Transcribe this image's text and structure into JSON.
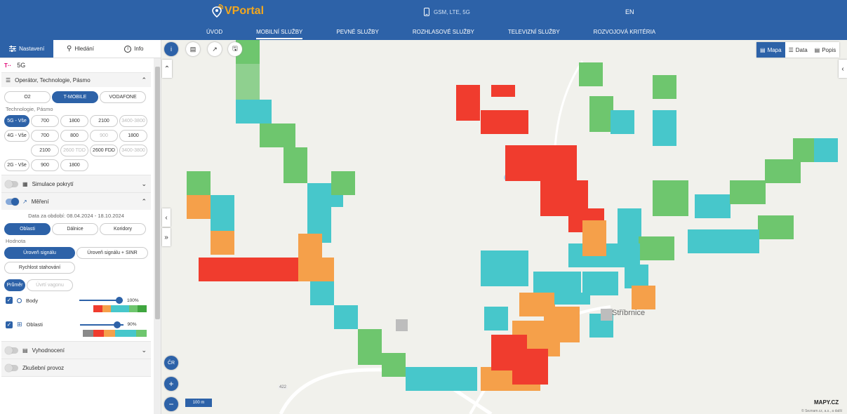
{
  "header": {
    "brand": "Portal",
    "brand_prefix": "V",
    "network": "GSM, LTE, 5G",
    "language": "EN",
    "nav": [
      "ÚVOD",
      "MOBILNÍ SLUŽBY",
      "PEVNÉ SLUŽBY",
      "ROZHLASOVÉ SLUŽBY",
      "TELEVIZNÍ SLUŽBY",
      "ROZVOJOVÁ KRITÉRIA"
    ],
    "nav_active": "MOBILNÍ SLUŽBY"
  },
  "sidebar": {
    "tabs": {
      "settings": "Nastavení",
      "search": "Hledání",
      "info": "Info"
    },
    "selection": "5G",
    "operator_section": "Operátor, Technologie, Pásmo",
    "operators": [
      "O2",
      "T-MOBILE",
      "VODAFONE"
    ],
    "tech_label": "Technologie, Pásmo",
    "tech_rows": [
      [
        "5G - Vše",
        "700",
        "1800",
        "2100",
        "3400-3800"
      ],
      [
        "4G - Vše",
        "700",
        "800",
        "900",
        "1800"
      ],
      [
        "",
        "2100",
        "2600 TDD",
        "2600 FDD",
        "3400-3800"
      ],
      [
        "2G - Vše",
        "900",
        "1800"
      ]
    ],
    "coverage_sim": "Simulace pokrytí",
    "measurement": "Měření",
    "date_range": "Data za období: 08.04.2024 - 18.10.2024",
    "area_types": [
      "Oblasti",
      "Dálnice",
      "Koridory"
    ],
    "value_label": "Hodnota",
    "values": [
      "Úroveň signálu",
      "Úroveň signálu + SINR",
      "Rychlost stahování"
    ],
    "avg": "Průměr",
    "route": "Úvrtí vagonu",
    "points_label": "Body",
    "points_pct": "100%",
    "points_level": 1.0,
    "areas_label": "Oblasti",
    "areas_pct": "90%",
    "areas_level": 0.9,
    "evaluation": "Vyhodnocení",
    "next": "Zkušební provoz"
  },
  "map": {
    "town": "Stříbrnice",
    "scale": "100 m",
    "cr_button": "ČR",
    "zoom_in": "+",
    "zoom_out": "−",
    "road": "422",
    "brand": "MAPY.CZ",
    "copyright": "© Seznam.cz, a.s., a další",
    "views": {
      "map": "Mapa",
      "data": "Data",
      "legend": "Popis"
    }
  },
  "colors": {
    "header": "#2d62a8",
    "red": "#f03c2e",
    "orange": "#f5a04a",
    "cyan": "#47c7cb",
    "green": "#6ec66e",
    "lightgreen": "#8fd08f",
    "grey": "#bdbdbd"
  }
}
